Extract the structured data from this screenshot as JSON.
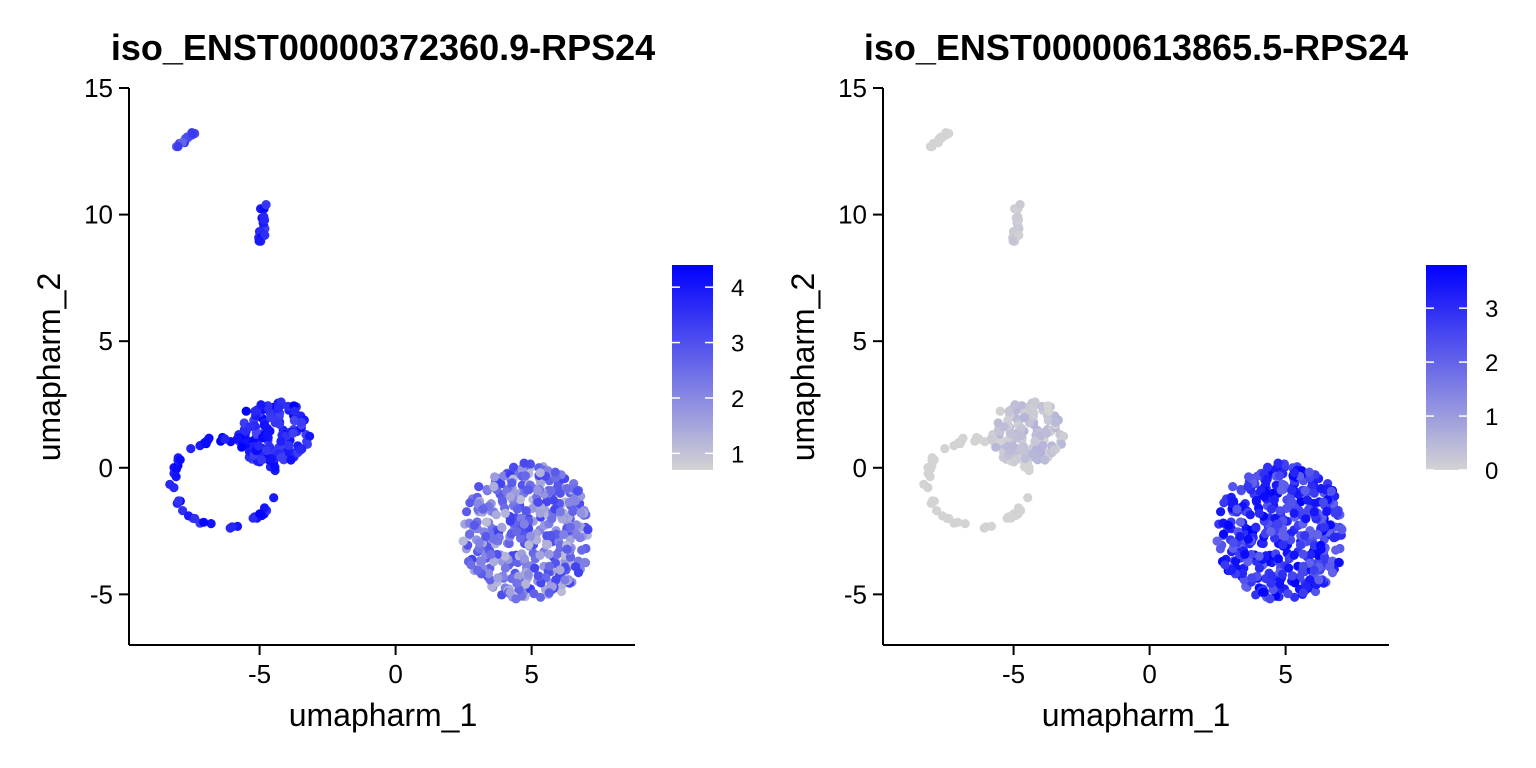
{
  "chart_data": [
    {
      "type": "scatter",
      "title": "iso_ENST00000372360.9-RPS24",
      "xlabel": "umapharm_1",
      "ylabel": "umapharm_2",
      "xlim": [
        -9.8,
        8.8
      ],
      "ylim": [
        -7,
        15
      ],
      "xticks": [
        -5,
        0,
        5
      ],
      "xtick_labels": [
        "-5",
        "0",
        "5"
      ],
      "yticks": [
        -5,
        0,
        5,
        10,
        15
      ],
      "ytick_labels": [
        "-5",
        "0",
        "5",
        "10",
        "15"
      ],
      "grid": false,
      "legend": "right",
      "colorbar": {
        "min": 0.7,
        "max": 4.4,
        "ticks": [
          1,
          2,
          3,
          4
        ],
        "tick_labels": [
          "1",
          "2",
          "3",
          "4"
        ],
        "low_color": "#d3d3d3",
        "high_color": "#0000ff"
      },
      "clusters": [
        {
          "name": "top-small",
          "shape": "line",
          "from": [
            -8.2,
            12.6
          ],
          "to": [
            -7.4,
            13.2
          ],
          "width": 0.15,
          "n": 12,
          "expr": [
            2.6,
            3.6
          ]
        },
        {
          "name": "upper-mid",
          "shape": "line",
          "from": [
            -4.9,
            10.8
          ],
          "to": [
            -4.9,
            9.0
          ],
          "width": 0.28,
          "n": 16,
          "expr": [
            3.3,
            4.3
          ]
        },
        {
          "name": "ring",
          "shape": "ring",
          "center": [
            -6.3,
            -0.6
          ],
          "rx": 1.9,
          "ry": 1.75,
          "thickness": 0.12,
          "n": 60,
          "expr": [
            3.4,
            4.4
          ]
        },
        {
          "name": "blob-left",
          "shape": "ellipse",
          "center": [
            -4.5,
            1.4
          ],
          "rx": 1.35,
          "ry": 1.3,
          "n": 130,
          "expr": [
            3.2,
            4.4
          ]
        },
        {
          "name": "big-right",
          "shape": "ellipse",
          "center": [
            4.85,
            -2.55
          ],
          "rx": 2.4,
          "ry": 2.75,
          "n": 420,
          "expr": [
            1.1,
            3.3
          ]
        }
      ]
    },
    {
      "type": "scatter",
      "title": "iso_ENST00000613865.5-RPS24",
      "xlabel": "umapharm_1",
      "ylabel": "umapharm_2",
      "xlim": [
        -9.8,
        8.8
      ],
      "ylim": [
        -7,
        15
      ],
      "xticks": [
        -5,
        0,
        5
      ],
      "xtick_labels": [
        "-5",
        "0",
        "5"
      ],
      "yticks": [
        -5,
        0,
        5,
        10,
        15
      ],
      "ytick_labels": [
        "-5",
        "0",
        "5",
        "10",
        "15"
      ],
      "grid": false,
      "legend": "right",
      "colorbar": {
        "min": 0,
        "max": 3.8,
        "ticks": [
          0,
          1,
          2,
          3
        ],
        "tick_labels": [
          "0",
          "1",
          "2",
          "3"
        ],
        "low_color": "#d3d3d3",
        "high_color": "#0000ff"
      },
      "clusters": [
        {
          "name": "top-small",
          "shape": "line",
          "from": [
            -8.2,
            12.6
          ],
          "to": [
            -7.4,
            13.2
          ],
          "width": 0.15,
          "n": 12,
          "expr": [
            0,
            0
          ]
        },
        {
          "name": "upper-mid",
          "shape": "line",
          "from": [
            -4.9,
            10.8
          ],
          "to": [
            -4.9,
            9.0
          ],
          "width": 0.28,
          "n": 16,
          "expr": [
            0,
            0.3
          ]
        },
        {
          "name": "ring",
          "shape": "ring",
          "center": [
            -6.3,
            -0.6
          ],
          "rx": 1.9,
          "ry": 1.75,
          "thickness": 0.12,
          "n": 60,
          "expr": [
            0,
            0
          ]
        },
        {
          "name": "blob-left",
          "shape": "ellipse",
          "center": [
            -4.5,
            1.4
          ],
          "rx": 1.35,
          "ry": 1.3,
          "n": 130,
          "expr": [
            0,
            0.6
          ]
        },
        {
          "name": "big-right",
          "shape": "ellipse",
          "center": [
            4.85,
            -2.55
          ],
          "rx": 2.4,
          "ry": 2.75,
          "n": 420,
          "expr": [
            2.0,
            3.8
          ]
        }
      ]
    }
  ]
}
